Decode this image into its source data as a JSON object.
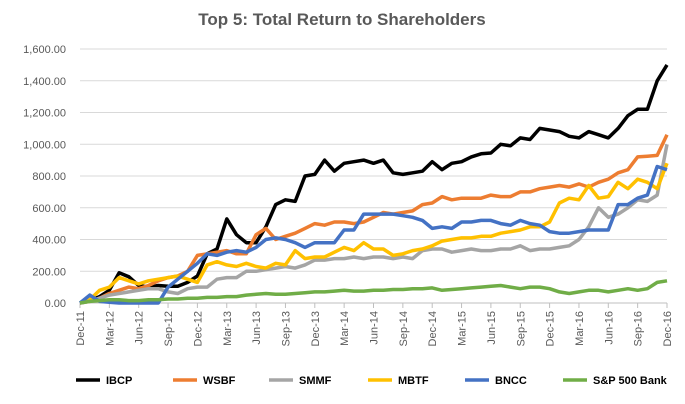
{
  "chart_data": {
    "type": "line",
    "title": "Top 5: Total Return to Shareholders",
    "xlabel": "",
    "ylabel": "",
    "ylim": [
      0,
      1600
    ],
    "yticks": [
      "0.00",
      "200.00",
      "400.00",
      "600.00",
      "800.00",
      "1,000.00",
      "1,200.00",
      "1,400.00",
      "1,600.00"
    ],
    "xtick_labels": [
      "Dec-11",
      "Mar-12",
      "Jun-12",
      "Sep-12",
      "Dec-12",
      "Mar-13",
      "Jun-13",
      "Sep-13",
      "Dec-13",
      "Mar-14",
      "Jun-14",
      "Sep-14",
      "Dec-14",
      "Mar-15",
      "Jun-15",
      "Sep-15",
      "Dec-15",
      "Mar-16",
      "Jun-16",
      "Sep-16",
      "Dec-16"
    ],
    "x_range": [
      "Dec-11",
      "Dec-16"
    ],
    "x_frequency": "monthly",
    "grid": "horizontal",
    "legend": "bottom",
    "series": [
      {
        "name": "IBCP",
        "color": "#000000",
        "values": [
          0,
          15,
          40,
          80,
          190,
          165,
          110,
          100,
          110,
          105,
          105,
          130,
          170,
          310,
          340,
          530,
          430,
          380,
          380,
          480,
          620,
          650,
          640,
          800,
          810,
          900,
          830,
          880,
          890,
          900,
          880,
          900,
          820,
          810,
          820,
          830,
          890,
          840,
          880,
          890,
          920,
          940,
          945,
          1000,
          990,
          1040,
          1030,
          1100,
          1090,
          1080,
          1050,
          1040,
          1080,
          1060,
          1040,
          1100,
          1180,
          1220,
          1220,
          1400,
          1500
        ]
      },
      {
        "name": "WSBF",
        "color": "#ED7D31",
        "values": [
          0,
          10,
          30,
          60,
          80,
          100,
          90,
          110,
          140,
          160,
          170,
          200,
          300,
          310,
          320,
          330,
          310,
          310,
          430,
          470,
          400,
          420,
          440,
          470,
          500,
          490,
          510,
          510,
          500,
          510,
          540,
          570,
          560,
          570,
          580,
          620,
          630,
          670,
          650,
          660,
          660,
          660,
          680,
          670,
          670,
          700,
          700,
          720,
          730,
          740,
          730,
          750,
          730,
          760,
          780,
          820,
          840,
          920,
          925,
          930,
          1060
        ]
      },
      {
        "name": "SMMF",
        "color": "#A5A5A5",
        "values": [
          0,
          10,
          30,
          50,
          60,
          70,
          80,
          90,
          90,
          70,
          60,
          90,
          100,
          100,
          150,
          160,
          160,
          200,
          200,
          210,
          220,
          230,
          220,
          240,
          270,
          270,
          280,
          280,
          290,
          280,
          290,
          290,
          280,
          290,
          280,
          330,
          340,
          340,
          320,
          330,
          340,
          330,
          330,
          340,
          340,
          360,
          330,
          340,
          340,
          350,
          360,
          400,
          480,
          600,
          540,
          560,
          600,
          650,
          640,
          680,
          1000
        ]
      },
      {
        "name": "MBTF",
        "color": "#FFC000",
        "values": [
          0,
          20,
          80,
          100,
          160,
          140,
          120,
          140,
          150,
          160,
          170,
          150,
          130,
          240,
          260,
          240,
          230,
          250,
          230,
          220,
          250,
          240,
          330,
          280,
          290,
          290,
          320,
          350,
          330,
          380,
          340,
          340,
          300,
          310,
          330,
          340,
          360,
          390,
          400,
          410,
          410,
          420,
          420,
          440,
          450,
          460,
          480,
          480,
          510,
          630,
          660,
          650,
          740,
          660,
          670,
          760,
          720,
          780,
          760,
          720,
          880
        ]
      },
      {
        "name": "BNCC",
        "color": "#4472C4",
        "values": [
          0,
          50,
          10,
          5,
          0,
          0,
          0,
          0,
          0,
          100,
          150,
          200,
          250,
          310,
          300,
          320,
          330,
          320,
          350,
          400,
          410,
          400,
          380,
          350,
          380,
          380,
          380,
          460,
          460,
          560,
          560,
          560,
          560,
          550,
          540,
          520,
          470,
          480,
          470,
          510,
          510,
          520,
          520,
          500,
          490,
          520,
          500,
          490,
          450,
          440,
          440,
          450,
          460,
          460,
          460,
          620,
          620,
          660,
          680,
          860,
          840
        ]
      },
      {
        "name": "S&P 500 Bank",
        "color": "#70AD47",
        "values": [
          0,
          10,
          15,
          20,
          20,
          15,
          15,
          20,
          20,
          25,
          25,
          30,
          30,
          35,
          35,
          40,
          40,
          50,
          55,
          60,
          55,
          55,
          60,
          65,
          70,
          70,
          75,
          80,
          75,
          75,
          80,
          80,
          85,
          85,
          90,
          90,
          95,
          80,
          85,
          90,
          95,
          100,
          105,
          110,
          100,
          90,
          100,
          100,
          90,
          70,
          60,
          70,
          80,
          80,
          70,
          80,
          90,
          80,
          90,
          130,
          140
        ]
      }
    ]
  }
}
